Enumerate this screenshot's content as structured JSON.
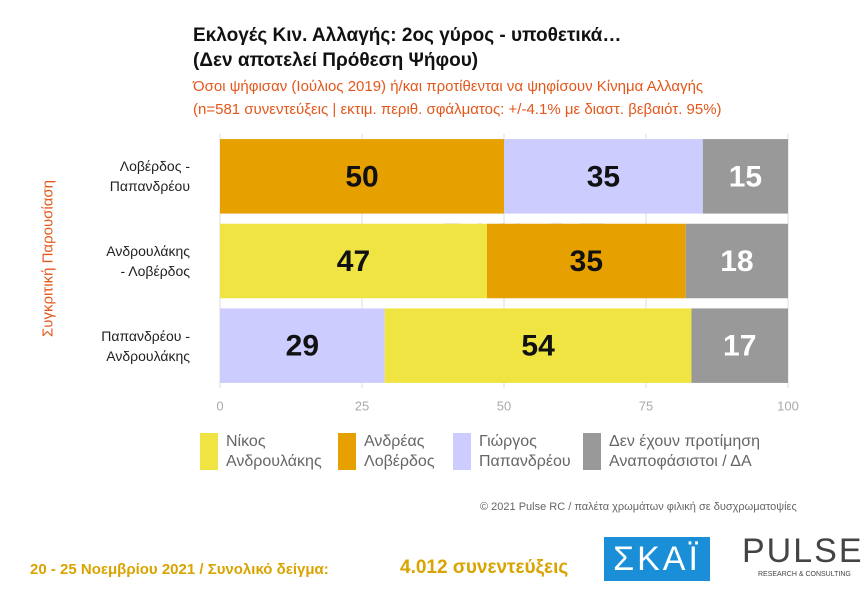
{
  "chart_data": {
    "type": "stacked-barh",
    "title": "Εκλογές Κιν. Αλλαγής: 2ος γύρος - υποθετικά…",
    "title2": "(Δεν αποτελεί Πρόθεση Ψήφου)",
    "subtitle": "Όσοι ψήφισαν (Ιούλιος 2019) ή/και προτίθενται να ψηφίσουν Κίνημα Αλλαγής",
    "subtitle2": "(n=581 συνεντεύξεις | εκτιμ. περιθ. σφάλματος: +/-4.1% με διαστ. βεβαιότ. 95%)",
    "ylabel": "Συγκριτική  Παρουσίαση",
    "bars": [
      {
        "label": "Λοβέρδος -\nΠαπανδρέου",
        "values": [
          50,
          35,
          15
        ],
        "colors": [
          "#e6a100",
          "#ccccff",
          "#999999"
        ]
      },
      {
        "label": "Ανδρουλάκης\n- Λοβέρδος",
        "values": [
          47,
          35,
          18
        ],
        "colors": [
          "#f0e442",
          "#e6a100",
          "#999999"
        ]
      },
      {
        "label": "Παπανδρέου -\nΑνδρουλάκης",
        "values": [
          29,
          54,
          17
        ],
        "colors": [
          "#ccccff",
          "#f0e442",
          "#999999"
        ]
      }
    ],
    "xlim": [
      0,
      100
    ],
    "xticks": [
      0,
      25,
      50,
      75,
      100
    ],
    "grid": true,
    "legend": [
      {
        "name": "Νίκος\nΑνδρουλάκης",
        "color": "#f0e442"
      },
      {
        "name": "Ανδρέας\nΛοβέρδος",
        "color": "#e6a100"
      },
      {
        "name": "Γιώργος\nΠαπανδρέου",
        "color": "#ccccff"
      },
      {
        "name": "Δεν έχουν προτίμηση\nΑναποφάσιστοι / ΔΑ",
        "color": "#999999"
      }
    ],
    "watermark": "PULSE",
    "watermark_sub": "RESEARCH & CONSULTING",
    "credit": "© 2021 Pulse RC  /  παλέτα χρωμάτων φιλική σε δυσχρωματοψίες",
    "footer": "20 - 25  Νοεμβρίου 2021  /  Συνολικό δείγμα:",
    "footer_sample": "4.012 συνεντεύξεις",
    "logo1": "ΣΚΑΪ",
    "logo2": "PULSE",
    "logo2_sub": "RESEARCH & CONSULTING"
  }
}
